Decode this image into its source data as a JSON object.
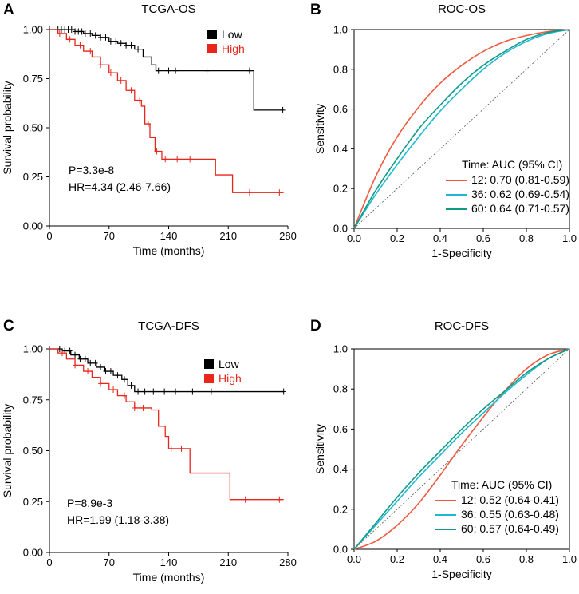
{
  "chart_data": [
    {
      "id": "A",
      "type": "line",
      "subtype": "kaplan-meier",
      "panel_label": "A",
      "title": "TCGA-OS",
      "xlabel": "Time (months)",
      "ylabel": "Survival probability",
      "xlim": [
        0,
        280
      ],
      "ylim": [
        0,
        1
      ],
      "xticks": [
        0,
        70,
        140,
        210,
        280
      ],
      "yticks": [
        0.0,
        0.25,
        0.5,
        0.75,
        1.0
      ],
      "xtick_labels": [
        "0",
        "70",
        "140",
        "210",
        "280"
      ],
      "ytick_labels": [
        "0.00",
        "0.25",
        "0.50",
        "0.75",
        "1.00"
      ],
      "legend": [
        {
          "name": "Low",
          "color": "#000000"
        },
        {
          "name": "High",
          "color": "#e8261b"
        }
      ],
      "annotations": [
        "P=3.3e-8",
        "HR=4.34 (2.46-7.66)"
      ],
      "series": [
        {
          "name": "Low",
          "color": "#000000",
          "points": [
            [
              0,
              1.0
            ],
            [
              20,
              1.0
            ],
            [
              30,
              0.99
            ],
            [
              40,
              0.98
            ],
            [
              50,
              0.97
            ],
            [
              60,
              0.96
            ],
            [
              70,
              0.94
            ],
            [
              80,
              0.93
            ],
            [
              90,
              0.92
            ],
            [
              100,
              0.9
            ],
            [
              110,
              0.86
            ],
            [
              120,
              0.82
            ],
            [
              125,
              0.79
            ],
            [
              230,
              0.79
            ],
            [
              240,
              0.59
            ],
            [
              275,
              0.59
            ]
          ],
          "censor_x": [
            10,
            14,
            18,
            22,
            26,
            30,
            34,
            38,
            42,
            48,
            54,
            60,
            66,
            72,
            78,
            84,
            90,
            96,
            104,
            128,
            140,
            148,
            185,
            235,
            274
          ]
        },
        {
          "name": "High",
          "color": "#e8261b",
          "points": [
            [
              0,
              1.0
            ],
            [
              10,
              0.98
            ],
            [
              20,
              0.95
            ],
            [
              30,
              0.92
            ],
            [
              40,
              0.89
            ],
            [
              50,
              0.86
            ],
            [
              60,
              0.82
            ],
            [
              70,
              0.78
            ],
            [
              80,
              0.74
            ],
            [
              90,
              0.69
            ],
            [
              100,
              0.64
            ],
            [
              108,
              0.61
            ],
            [
              112,
              0.52
            ],
            [
              118,
              0.45
            ],
            [
              124,
              0.38
            ],
            [
              132,
              0.34
            ],
            [
              175,
              0.34
            ],
            [
              195,
              0.26
            ],
            [
              210,
              0.26
            ],
            [
              215,
              0.17
            ],
            [
              275,
              0.17
            ]
          ],
          "censor_x": [
            12,
            24,
            36,
            48,
            60,
            72,
            84,
            96,
            106,
            116,
            126,
            136,
            150,
            165,
            235,
            270
          ]
        }
      ]
    },
    {
      "id": "B",
      "type": "line",
      "subtype": "roc",
      "panel_label": "B",
      "title": "ROC-OS",
      "xlabel": "1-Specificity",
      "ylabel": "Sensitivity",
      "xlim": [
        0,
        1
      ],
      "ylim": [
        0,
        1
      ],
      "xticks": [
        0.0,
        0.2,
        0.4,
        0.6,
        0.8,
        1.0
      ],
      "yticks": [
        0.0,
        0.2,
        0.4,
        0.6,
        0.8,
        1.0
      ],
      "xtick_labels": [
        "0.0",
        "0.2",
        "0.4",
        "0.6",
        "0.8",
        "1.0"
      ],
      "ytick_labels": [
        "0.0",
        "0.2",
        "0.4",
        "0.6",
        "0.8",
        "1.0"
      ],
      "legend_title": "Time: AUC (95% CI)",
      "series": [
        {
          "name": "12: 0.70 (0.81-0.59)",
          "color": "#ef5a40",
          "points": [
            [
              0,
              0
            ],
            [
              0.1,
              0.26
            ],
            [
              0.2,
              0.46
            ],
            [
              0.3,
              0.61
            ],
            [
              0.4,
              0.73
            ],
            [
              0.5,
              0.82
            ],
            [
              0.6,
              0.89
            ],
            [
              0.7,
              0.94
            ],
            [
              0.8,
              0.97
            ],
            [
              0.9,
              0.99
            ],
            [
              1,
              1
            ]
          ]
        },
        {
          "name": "36: 0.62 (0.69-0.54)",
          "color": "#1fb8d1",
          "points": [
            [
              0,
              0
            ],
            [
              0.1,
              0.17
            ],
            [
              0.2,
              0.32
            ],
            [
              0.3,
              0.46
            ],
            [
              0.4,
              0.59
            ],
            [
              0.5,
              0.7
            ],
            [
              0.6,
              0.8
            ],
            [
              0.7,
              0.88
            ],
            [
              0.8,
              0.94
            ],
            [
              0.9,
              0.98
            ],
            [
              1,
              1
            ]
          ]
        },
        {
          "name": "60: 0.64 (0.71-0.57)",
          "color": "#109a86",
          "points": [
            [
              0,
              0
            ],
            [
              0.1,
              0.19
            ],
            [
              0.2,
              0.35
            ],
            [
              0.3,
              0.5
            ],
            [
              0.4,
              0.62
            ],
            [
              0.5,
              0.73
            ],
            [
              0.6,
              0.82
            ],
            [
              0.7,
              0.89
            ],
            [
              0.8,
              0.95
            ],
            [
              0.9,
              0.985
            ],
            [
              1,
              1
            ]
          ]
        }
      ]
    },
    {
      "id": "C",
      "type": "line",
      "subtype": "kaplan-meier",
      "panel_label": "C",
      "title": "TCGA-DFS",
      "xlabel": "Time (months)",
      "ylabel": "Survival probability",
      "xlim": [
        0,
        280
      ],
      "ylim": [
        0,
        1
      ],
      "xticks": [
        0,
        70,
        140,
        210,
        280
      ],
      "yticks": [
        0.0,
        0.25,
        0.5,
        0.75,
        1.0
      ],
      "xtick_labels": [
        "0",
        "70",
        "140",
        "210",
        "280"
      ],
      "ytick_labels": [
        "0.00",
        "0.25",
        "0.50",
        "0.75",
        "1.00"
      ],
      "legend": [
        {
          "name": "Low",
          "color": "#000000"
        },
        {
          "name": "High",
          "color": "#e8261b"
        }
      ],
      "annotations": [
        "P=8.9e-3",
        "HR=1.99 (1.18-3.38)"
      ],
      "series": [
        {
          "name": "Low",
          "color": "#000000",
          "points": [
            [
              0,
              1.0
            ],
            [
              15,
              0.99
            ],
            [
              25,
              0.97
            ],
            [
              35,
              0.95
            ],
            [
              45,
              0.93
            ],
            [
              55,
              0.91
            ],
            [
              65,
              0.89
            ],
            [
              75,
              0.87
            ],
            [
              85,
              0.85
            ],
            [
              92,
              0.82
            ],
            [
              100,
              0.79
            ],
            [
              275,
              0.79
            ]
          ],
          "censor_x": [
            12,
            18,
            24,
            30,
            36,
            42,
            48,
            54,
            60,
            66,
            72,
            80,
            88,
            96,
            104,
            112,
            122,
            135,
            148,
            168,
            190,
            275
          ]
        },
        {
          "name": "High",
          "color": "#e8261b",
          "points": [
            [
              0,
              1.0
            ],
            [
              10,
              0.98
            ],
            [
              20,
              0.95
            ],
            [
              30,
              0.92
            ],
            [
              40,
              0.89
            ],
            [
              50,
              0.86
            ],
            [
              60,
              0.83
            ],
            [
              70,
              0.8
            ],
            [
              80,
              0.77
            ],
            [
              90,
              0.74
            ],
            [
              100,
              0.71
            ],
            [
              120,
              0.7
            ],
            [
              128,
              0.62
            ],
            [
              136,
              0.57
            ],
            [
              140,
              0.51
            ],
            [
              150,
              0.51
            ],
            [
              160,
              0.51
            ],
            [
              165,
              0.39
            ],
            [
              212,
              0.26
            ],
            [
              275,
              0.26
            ]
          ],
          "censor_x": [
            15,
            30,
            45,
            60,
            75,
            88,
            100,
            110,
            125,
            143,
            155,
            230,
            270
          ]
        }
      ]
    },
    {
      "id": "D",
      "type": "line",
      "subtype": "roc",
      "panel_label": "D",
      "title": "ROC-DFS",
      "xlabel": "1-Specificity",
      "ylabel": "Sensitivity",
      "xlim": [
        0,
        1
      ],
      "ylim": [
        0,
        1
      ],
      "xticks": [
        0.0,
        0.2,
        0.4,
        0.6,
        0.8,
        1.0
      ],
      "yticks": [
        0.0,
        0.2,
        0.4,
        0.6,
        0.8,
        1.0
      ],
      "xtick_labels": [
        "0.0",
        "0.2",
        "0.4",
        "0.6",
        "0.8",
        "1.0"
      ],
      "ytick_labels": [
        "0.0",
        "0.2",
        "0.4",
        "0.6",
        "0.8",
        "1.0"
      ],
      "legend_title": "Time: AUC (95% CI)",
      "series": [
        {
          "name": "12: 0.52 (0.64-0.41)",
          "color": "#ef5a40",
          "points": [
            [
              0,
              0
            ],
            [
              0.1,
              0.04
            ],
            [
              0.2,
              0.12
            ],
            [
              0.3,
              0.23
            ],
            [
              0.4,
              0.37
            ],
            [
              0.5,
              0.52
            ],
            [
              0.6,
              0.66
            ],
            [
              0.7,
              0.79
            ],
            [
              0.8,
              0.9
            ],
            [
              0.9,
              0.97
            ],
            [
              1,
              1
            ]
          ]
        },
        {
          "name": "36: 0.55 (0.63-0.48)",
          "color": "#1fb8d1",
          "points": [
            [
              0,
              0
            ],
            [
              0.1,
              0.12
            ],
            [
              0.2,
              0.24
            ],
            [
              0.3,
              0.36
            ],
            [
              0.4,
              0.47
            ],
            [
              0.5,
              0.58
            ],
            [
              0.6,
              0.68
            ],
            [
              0.7,
              0.78
            ],
            [
              0.8,
              0.87
            ],
            [
              0.9,
              0.95
            ],
            [
              1,
              1
            ]
          ]
        },
        {
          "name": "60: 0.57 (0.64-0.49)",
          "color": "#109a86",
          "points": [
            [
              0,
              0
            ],
            [
              0.1,
              0.13
            ],
            [
              0.2,
              0.26
            ],
            [
              0.3,
              0.38
            ],
            [
              0.4,
              0.49
            ],
            [
              0.5,
              0.6
            ],
            [
              0.6,
              0.7
            ],
            [
              0.7,
              0.79
            ],
            [
              0.8,
              0.88
            ],
            [
              0.9,
              0.95
            ],
            [
              1,
              1
            ]
          ]
        }
      ]
    }
  ]
}
